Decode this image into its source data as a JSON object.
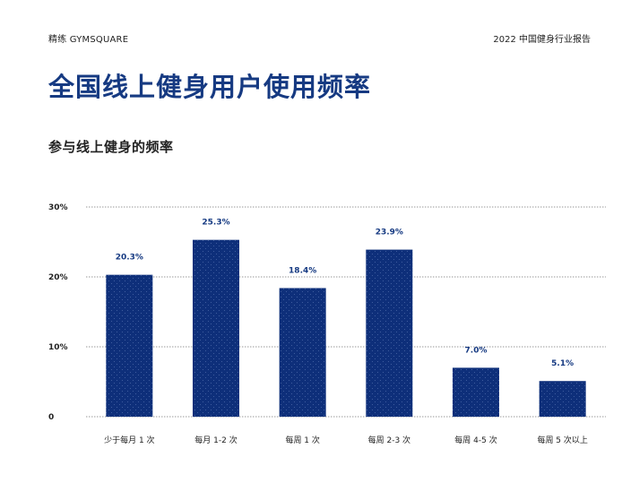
{
  "header": {
    "brand": "精练 GYMSQUARE",
    "report": "2022 中国健身行业报告"
  },
  "page_title": "全国线上健身用户使用频率",
  "subtitle": "参与线上健身的频率",
  "colors": {
    "bar": "#0e2f7a",
    "title": "#163a82",
    "grid": "#9a9a9a"
  },
  "chart_data": {
    "type": "bar",
    "title": "",
    "xlabel": "",
    "ylabel": "",
    "categories": [
      "少于每月 1 次",
      "每月 1-2 次",
      "每周 1 次",
      "每周 2-3 次",
      "每周 4-5 次",
      "每周 5 次以上"
    ],
    "values": [
      20.3,
      25.3,
      18.4,
      23.9,
      7.0,
      5.1
    ],
    "value_labels": [
      "20.3%",
      "25.3%",
      "18.4%",
      "23.9%",
      "7.0%",
      "5.1%"
    ],
    "ylim": [
      0,
      30
    ],
    "yticks": [
      0,
      10,
      20,
      30
    ],
    "ytick_labels": [
      "0",
      "10%",
      "20%",
      "30%"
    ],
    "grid": true,
    "legend": "none"
  }
}
